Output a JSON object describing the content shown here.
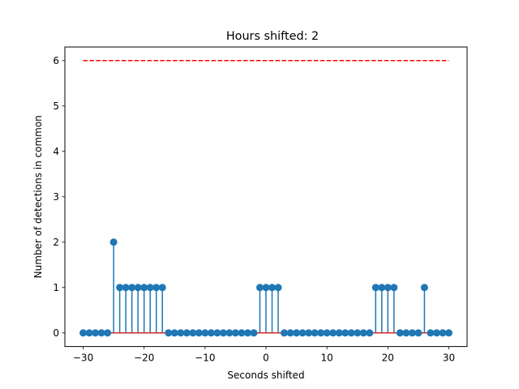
{
  "chart_data": {
    "type": "stem",
    "title": "Hours shifted: 2",
    "xlabel": "Seconds shifted",
    "ylabel": "Number of detections in common",
    "xlim": [
      -33,
      33
    ],
    "ylim": [
      -0.3,
      6.3
    ],
    "xticks": [
      -30,
      -20,
      -10,
      0,
      10,
      20,
      30
    ],
    "xtick_labels": [
      "−30",
      "−20",
      "−10",
      "0",
      "10",
      "20",
      "30"
    ],
    "yticks": [
      0,
      1,
      2,
      3,
      4,
      5,
      6
    ],
    "ytick_labels": [
      "0",
      "1",
      "2",
      "3",
      "4",
      "5",
      "6"
    ],
    "grid": false,
    "x": [
      -30,
      -29,
      -28,
      -27,
      -26,
      -25,
      -24,
      -23,
      -22,
      -21,
      -20,
      -19,
      -18,
      -17,
      -16,
      -15,
      -14,
      -13,
      -12,
      -11,
      -10,
      -9,
      -8,
      -7,
      -6,
      -5,
      -4,
      -3,
      -2,
      -1,
      0,
      1,
      2,
      3,
      4,
      5,
      6,
      7,
      8,
      9,
      10,
      11,
      12,
      13,
      14,
      15,
      16,
      17,
      18,
      19,
      20,
      21,
      22,
      23,
      24,
      25,
      26,
      27,
      28,
      29,
      30
    ],
    "values": [
      0,
      0,
      0,
      0,
      0,
      2,
      1,
      1,
      1,
      1,
      1,
      1,
      1,
      1,
      0,
      0,
      0,
      0,
      0,
      0,
      0,
      0,
      0,
      0,
      0,
      0,
      0,
      0,
      0,
      1,
      1,
      1,
      1,
      0,
      0,
      0,
      0,
      0,
      0,
      0,
      0,
      0,
      0,
      0,
      0,
      0,
      0,
      0,
      1,
      1,
      1,
      1,
      0,
      0,
      0,
      0,
      1,
      0,
      0,
      0,
      0
    ],
    "reference_line": {
      "y": 6,
      "x_range": [
        -30,
        30
      ],
      "style": "dashed"
    },
    "colors": {
      "stem": "#1f77b4",
      "baseline": "#d62728",
      "reference": "#ff0000"
    }
  }
}
